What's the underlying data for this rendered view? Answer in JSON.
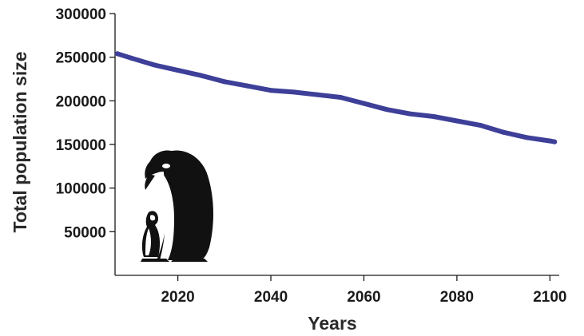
{
  "chart_data": {
    "type": "line",
    "title": "",
    "xlabel": "Years",
    "ylabel": "Total population size",
    "xlim": [
      2006.5,
      2102
    ],
    "ylim": [
      0,
      300000
    ],
    "x_ticks": [
      2020,
      2040,
      2060,
      2080,
      2100
    ],
    "y_ticks": [
      50000,
      100000,
      150000,
      200000,
      250000,
      300000
    ],
    "grid": false,
    "legend": "none",
    "series": [
      {
        "color": "#3d3f98",
        "x": [
          2007,
          2010,
          2015,
          2020,
          2025,
          2030,
          2035,
          2040,
          2045,
          2050,
          2055,
          2060,
          2065,
          2070,
          2075,
          2080,
          2085,
          2090,
          2095,
          2100,
          2101
        ],
        "y": [
          254000,
          249000,
          241000,
          235000,
          229000,
          222000,
          217000,
          212000,
          210000,
          207000,
          204000,
          197000,
          190000,
          185000,
          182000,
          177000,
          172000,
          164000,
          158000,
          154000,
          153000
        ]
      }
    ]
  },
  "illustration": {
    "icon": "emperor-penguin-with-chick-icon"
  }
}
